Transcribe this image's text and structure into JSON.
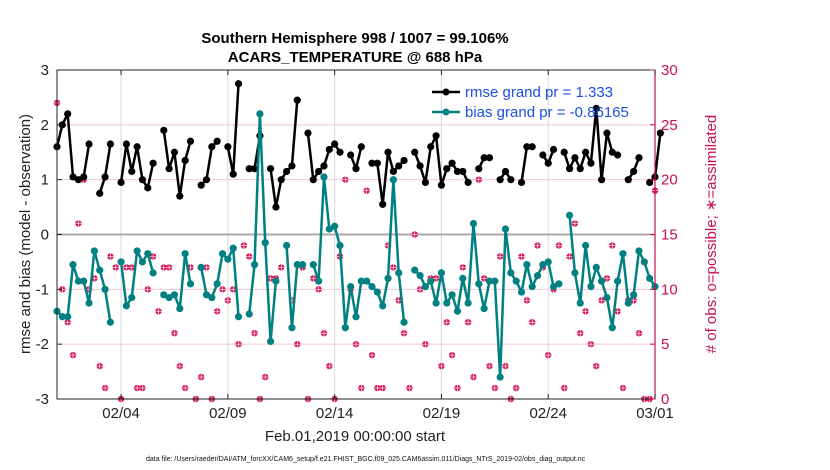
{
  "chart_data": {
    "type": "line",
    "title": [
      "Southern Hemisphere 998 / 1007 = 99.106%",
      "ACARS_TEMPERATURE @ 688 hPa"
    ],
    "xlabel": "Feb.01,2019 00:00:00 start",
    "ylabel": "rmse and bias (model - observation)",
    "y2label": "# of obs: o=possible; ∗=assimilated",
    "footer": "data file: /Users/raeder/DAI/ATM_forcXX/CAM6_setup/f.e21.FHIST_BGC.f09_025.CAM6assim.011/Diags_NTrS_2019-02/obs_diag_output.nc",
    "xlim": [
      0,
      28
    ],
    "ylim": [
      -3,
      3
    ],
    "y2lim": [
      0,
      30
    ],
    "x_unit": "days since Feb.01,2019 00:00:00",
    "x_ticks": [
      {
        "x": 3,
        "label": "02/04"
      },
      {
        "x": 8,
        "label": "02/09"
      },
      {
        "x": 13,
        "label": "02/14"
      },
      {
        "x": 18,
        "label": "02/19"
      },
      {
        "x": 23,
        "label": "02/24"
      },
      {
        "x": 28,
        "label": "03/01"
      }
    ],
    "y_ticks": [
      "-3",
      "-2",
      "-1",
      "0",
      "1",
      "2",
      "3"
    ],
    "y2_ticks": [
      "0",
      "5",
      "10",
      "15",
      "20",
      "25",
      "30"
    ],
    "grid": true,
    "legend_position": "top-right",
    "colors": {
      "rmse": "#000000",
      "bias": "#008080",
      "obs": "#d6185a",
      "zero": "#b0a8a8"
    },
    "series": [
      {
        "name": "rmse grand pr = 1.333",
        "x_start": 0,
        "x_step": 0.25,
        "values": [
          1.6,
          2.0,
          2.2,
          1.05,
          1.0,
          1.05,
          1.65,
          null,
          0.75,
          1.05,
          1.65,
          null,
          0.95,
          1.65,
          1.15,
          1.6,
          1.0,
          0.85,
          1.3,
          null,
          1.9,
          1.2,
          1.5,
          0.7,
          1.35,
          1.7,
          null,
          0.9,
          1.0,
          1.6,
          1.7,
          null,
          1.6,
          1.1,
          2.75,
          null,
          1.2,
          1.2,
          1.8,
          null,
          1.2,
          0.5,
          1.0,
          1.15,
          1.25,
          2.45,
          null,
          1.85,
          1.0,
          1.15,
          1.25,
          1.55,
          1.65,
          1.5,
          null,
          1.45,
          1.2,
          1.6,
          null,
          1.3,
          1.3,
          0.55,
          1.5,
          1.15,
          1.25,
          1.35,
          null,
          1.5,
          1.25,
          0.95,
          1.6,
          1.8,
          0.9,
          1.2,
          1.3,
          1.15,
          1.15,
          0.95,
          null,
          1.2,
          1.4,
          1.4,
          null,
          1.0,
          1.15,
          1.0,
          null,
          0.95,
          1.6,
          1.6,
          null,
          1.45,
          1.3,
          1.55,
          null,
          1.5,
          1.2,
          1.4,
          1.2,
          1.5,
          1.3,
          2.3,
          1.0,
          1.85,
          1.5,
          1.45,
          null,
          1.0,
          1.15,
          1.4,
          null,
          0.95,
          1.05,
          1.85
        ]
      },
      {
        "name": "bias grand pr = -0.86165",
        "x_start": 0,
        "x_step": 0.25,
        "values": [
          -1.4,
          -1.5,
          -1.5,
          -0.55,
          -0.85,
          -0.85,
          -1.25,
          -0.3,
          -0.65,
          -1.0,
          -1.6,
          null,
          -0.5,
          -1.3,
          -1.15,
          -0.3,
          -0.5,
          -0.35,
          -0.7,
          null,
          -1.1,
          -1.15,
          -1.1,
          -1.35,
          -0.35,
          -0.9,
          null,
          -0.6,
          -1.1,
          -1.15,
          -0.9,
          -0.35,
          -0.45,
          -0.25,
          -1.5,
          null,
          -1.45,
          -0.55,
          2.2,
          -0.15,
          -1.95,
          -0.85,
          null,
          -0.2,
          -1.7,
          -0.55,
          -0.55,
          null,
          -0.55,
          -0.85,
          1.05,
          0.1,
          0.15,
          -0.2,
          -1.7,
          -0.95,
          -1.5,
          -0.85,
          -0.85,
          -0.95,
          -1.05,
          -1.3,
          -0.8,
          1.0,
          -0.7,
          -1.6,
          null,
          -0.65,
          -0.75,
          -0.95,
          -0.85,
          -1.25,
          -0.7,
          -1.25,
          -1.1,
          -1.4,
          -0.8,
          -1.25,
          0.2,
          -0.9,
          -1.35,
          -0.85,
          -0.85,
          -2.6,
          0.1,
          -0.7,
          -0.85,
          -1.05,
          -0.55,
          -0.95,
          -0.75,
          -0.55,
          -0.5,
          -0.95,
          -0.9,
          null,
          0.35,
          -0.7,
          -1.25,
          -0.2,
          -0.95,
          -0.6,
          -0.85,
          -1.15,
          -1.7,
          -0.85,
          -0.35,
          -1.25,
          -1.1,
          -0.3,
          -0.5,
          -0.8,
          -0.95
        ]
      }
    ],
    "obs_assimilated": {
      "x_start": 0,
      "x_step": 0.25,
      "values": [
        27,
        10,
        7,
        4,
        16,
        20,
        10,
        11,
        3,
        1,
        13,
        12,
        0,
        12,
        12,
        1,
        1,
        10,
        13,
        8,
        12,
        12,
        6,
        3,
        1,
        12,
        0,
        2,
        12,
        0,
        8,
        10,
        9,
        10,
        5,
        14,
        13,
        6,
        0,
        2,
        11,
        11,
        12,
        14,
        9,
        5,
        12,
        0,
        11,
        10,
        6,
        3,
        0,
        13,
        20,
        10,
        5,
        1,
        19,
        4,
        1,
        1,
        14,
        12,
        9,
        6,
        1,
        15,
        10,
        5,
        11,
        11,
        3,
        7,
        4,
        1,
        12,
        7,
        2,
        20,
        11,
        3,
        1,
        13,
        3,
        0,
        1,
        13,
        9,
        7,
        14,
        12,
        4,
        10,
        14,
        1,
        13,
        16,
        6,
        8,
        5,
        3,
        9,
        11,
        14,
        8,
        1,
        9,
        9,
        6,
        0,
        0,
        19
      ]
    },
    "legend": [
      {
        "label": "rmse grand pr = 1.333",
        "color": "#000000"
      },
      {
        "label": "bias grand pr = -0.86165",
        "color": "#008080"
      }
    ]
  }
}
